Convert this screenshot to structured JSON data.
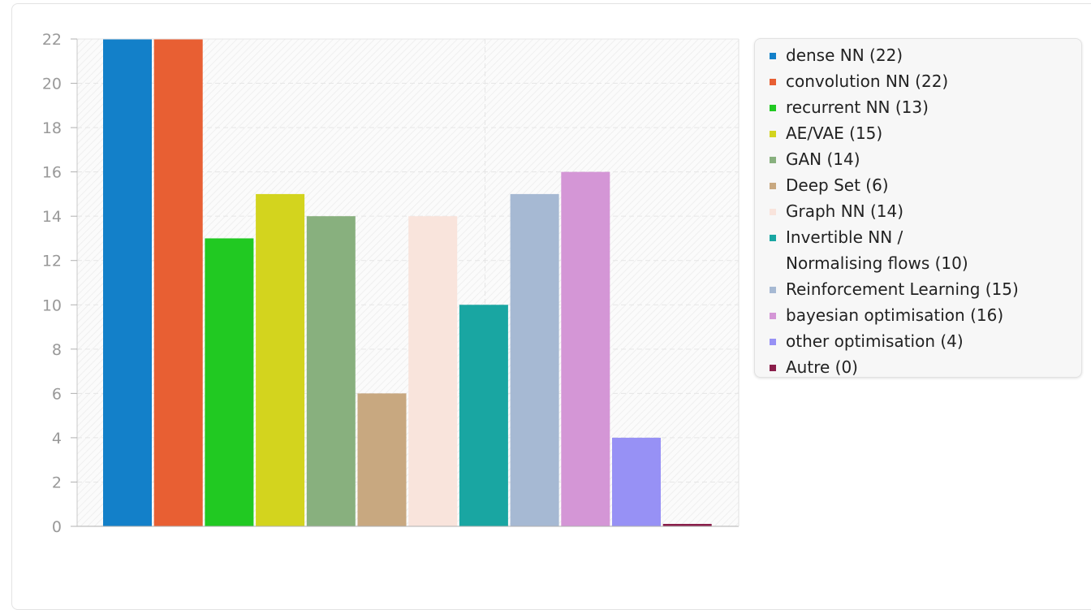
{
  "chart_data": {
    "type": "bar",
    "categories": [
      "dense NN",
      "convolution NN",
      "recurrent NN",
      "AE/VAE",
      "GAN",
      "Deep Set",
      "Graph NN",
      "Invertible NN / Normalising flows",
      "Reinforcement Learning",
      "bayesian optimisation",
      "other optimisation",
      "Autre"
    ],
    "values": [
      22,
      22,
      13,
      15,
      14,
      6,
      14,
      10,
      15,
      16,
      4,
      0
    ],
    "colors": [
      "#1380c9",
      "#e85f33",
      "#21c922",
      "#d3d41e",
      "#88b07e",
      "#c8a880",
      "#f9e4dc",
      "#19a6a2",
      "#a6b9d3",
      "#d496d6",
      "#9791f5",
      "#8a1e4a"
    ],
    "ylim": [
      0,
      22
    ],
    "yticks": [
      "0",
      "2",
      "4",
      "6",
      "8",
      "10",
      "12",
      "14",
      "16",
      "18",
      "20",
      "22"
    ],
    "grid": true,
    "legend_position": "right",
    "title": "",
    "xlabel": "",
    "ylabel": ""
  },
  "legend": [
    {
      "label": "dense NN (22)"
    },
    {
      "label": "convolution NN (22)"
    },
    {
      "label": "recurrent NN (13)"
    },
    {
      "label": "AE/VAE (15)"
    },
    {
      "label": "GAN (14)"
    },
    {
      "label": "Deep Set (6)"
    },
    {
      "label": "Graph NN (14)"
    },
    {
      "label": "Invertible NN /",
      "label2": "Normalising flows (10)"
    },
    {
      "label": "Reinforcement Learning (15)"
    },
    {
      "label": "bayesian optimisation (16)"
    },
    {
      "label": "other optimisation (4)"
    },
    {
      "label": "Autre (0)"
    }
  ]
}
